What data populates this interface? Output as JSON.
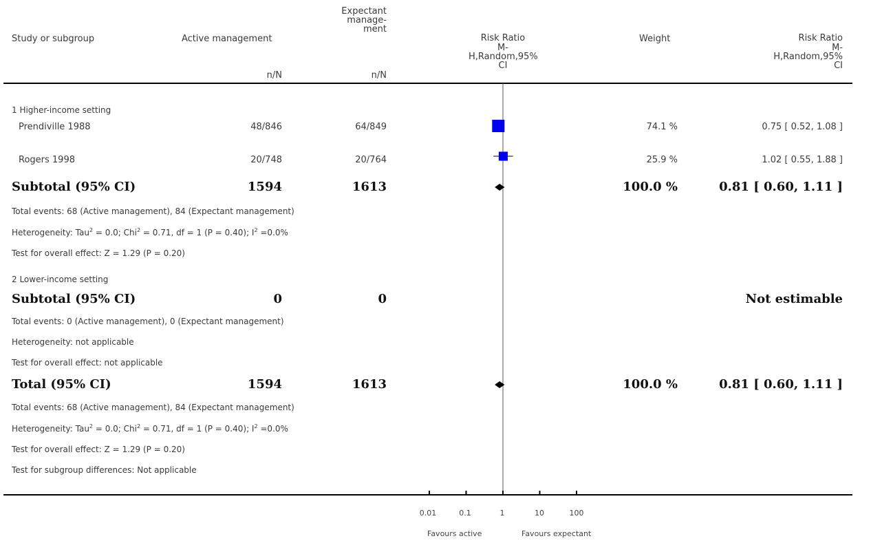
{
  "header": {
    "study_col": "Study or subgroup",
    "active_col": "Active management",
    "expectant_col_lines": [
      "Expectant",
      "manage-",
      "ment"
    ],
    "nN": "n/N",
    "rr_plot_lines": [
      "Risk Ratio",
      "M-",
      "H,Random,95%",
      "CI"
    ],
    "weight_col": "Weight",
    "rr_text_lines": [
      "Risk Ratio",
      "M-",
      "H,Random,95%",
      "CI"
    ]
  },
  "subgroup1": {
    "title": "1 Higher-income setting",
    "studies": [
      {
        "name": "Prendiville 1988",
        "active": "48/846",
        "expectant": "64/849",
        "weight": "74.1 %",
        "rr_text": "0.75 [ 0.52, 1.08 ]",
        "rr": 0.75,
        "lo": 0.52,
        "hi": 1.08,
        "w": 74.1
      },
      {
        "name": "Rogers 1998",
        "active": "20/748",
        "expectant": "20/764",
        "weight": "25.9 %",
        "rr_text": "1.02 [ 0.55, 1.88 ]",
        "rr": 1.02,
        "lo": 0.55,
        "hi": 1.88,
        "w": 25.9
      }
    ],
    "subtotal": {
      "label": "Subtotal (95% CI)",
      "active": "1594",
      "expectant": "1613",
      "weight": "100.0 %",
      "rr_text": "0.81 [ 0.60, 1.11 ]",
      "rr": 0.81,
      "lo": 0.6,
      "hi": 1.11
    },
    "events": "Total events: 68 (Active management), 84 (Expectant management)",
    "het_a": "Heterogeneity: Tau",
    "het_b": " = 0.0; Chi",
    "het_c": " = 0.71, df = 1 (P = 0.40); I",
    "het_d": " =0.0%",
    "sup2": "2",
    "overall": "Test for overall effect: Z = 1.29 (P = 0.20)"
  },
  "subgroup2": {
    "title": "2 Lower-income setting",
    "subtotal": {
      "label": "Subtotal (95% CI)",
      "active": "0",
      "expectant": "0",
      "rr_text": "Not estimable"
    },
    "events": "Total events: 0 (Active management), 0 (Expectant management)",
    "het": "Heterogeneity: not applicable",
    "overall": "Test for overall effect: not applicable"
  },
  "total": {
    "label": "Total (95% CI)",
    "active": "1594",
    "expectant": "1613",
    "weight": "100.0 %",
    "rr_text": "0.81 [ 0.60, 1.11 ]",
    "rr": 0.81,
    "lo": 0.6,
    "hi": 1.11,
    "events": "Total events: 68 (Active management), 84 (Expectant management)",
    "het_a": "Heterogeneity: Tau",
    "het_b": " = 0.0; Chi",
    "het_c": " = 0.71, df = 1 (P = 0.40); I",
    "het_d": " =0.0%",
    "sup2": "2",
    "overall": "Test for overall effect: Z = 1.29 (P = 0.20)",
    "subgroup_diff": "Test for subgroup differences: Not applicable"
  },
  "axis": {
    "ticks": [
      "0.01",
      "0.1",
      "1",
      "10",
      "100"
    ],
    "favours_left": "Favours active",
    "favours_right": "Favours expectant"
  },
  "colors": {
    "marker": "#0000ee",
    "diamond": "#000000",
    "line": "#000000",
    "ref": "#555555"
  },
  "chart_data": {
    "type": "forest",
    "scale": "log",
    "xlim": [
      0.01,
      100
    ],
    "ticks": [
      0.01,
      0.1,
      1,
      10,
      100
    ],
    "series": [
      {
        "name": "Prendiville 1988",
        "rr": 0.75,
        "lo": 0.52,
        "hi": 1.08,
        "weight": 74.1
      },
      {
        "name": "Rogers 1998",
        "rr": 1.02,
        "lo": 0.55,
        "hi": 1.88,
        "weight": 25.9
      },
      {
        "name": "Subtotal (95% CI)",
        "rr": 0.81,
        "lo": 0.6,
        "hi": 1.11,
        "pooled": true
      },
      {
        "name": "Total (95% CI)",
        "rr": 0.81,
        "lo": 0.6,
        "hi": 1.11,
        "pooled": true
      }
    ]
  }
}
